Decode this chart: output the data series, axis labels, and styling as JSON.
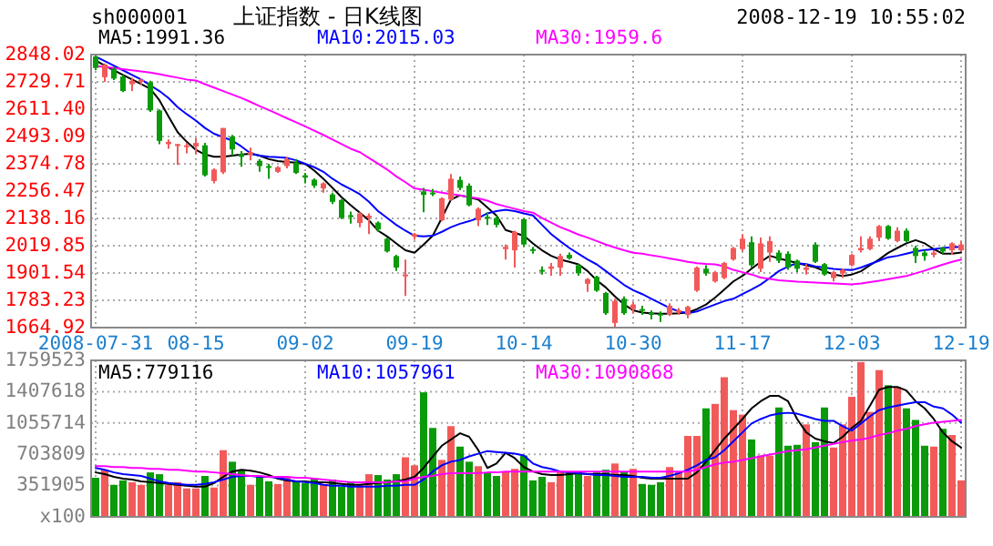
{
  "chart_data": [
    {
      "type": "candlestick",
      "title": "上证指数 - 日K线图",
      "subtitle": "sh000001",
      "annotations": [
        "2008-12-19 10:55:02"
      ],
      "categories": [
        "2008-07-31",
        null,
        null,
        null,
        null,
        null,
        null,
        null,
        null,
        null,
        null,
        "08-15",
        null,
        null,
        null,
        null,
        null,
        null,
        null,
        null,
        null,
        null,
        null,
        "09-02",
        null,
        null,
        null,
        null,
        null,
        null,
        null,
        null,
        null,
        null,
        null,
        "09-19",
        null,
        null,
        null,
        null,
        null,
        null,
        null,
        null,
        null,
        null,
        null,
        "10-14",
        null,
        null,
        null,
        null,
        null,
        null,
        null,
        null,
        null,
        null,
        null,
        "10-30",
        null,
        null,
        null,
        null,
        null,
        null,
        null,
        null,
        null,
        null,
        null,
        "11-17",
        null,
        null,
        null,
        null,
        null,
        null,
        null,
        null,
        null,
        null,
        null,
        "12-03",
        null,
        null,
        null,
        null,
        null,
        null,
        null,
        null,
        null,
        null,
        null,
        "12-19"
      ],
      "ohlc": [
        [
          2840,
          2848,
          2780,
          2790
        ],
        [
          2750,
          2810,
          2730,
          2805
        ],
        [
          2786,
          2795,
          2738,
          2744
        ],
        [
          2753,
          2760,
          2685,
          2690
        ],
        [
          2720,
          2748,
          2690,
          2735
        ],
        [
          2730,
          2745,
          2715,
          2738
        ],
        [
          2728,
          2735,
          2600,
          2606
        ],
        [
          2606,
          2610,
          2460,
          2474
        ],
        [
          2460,
          2480,
          2440,
          2470
        ],
        [
          2455,
          2462,
          2370,
          2460
        ],
        [
          2450,
          2465,
          2420,
          2455
        ],
        [
          2450,
          2485,
          2415,
          2465
        ],
        [
          2455,
          2465,
          2320,
          2325
        ],
        [
          2300,
          2355,
          2290,
          2350
        ],
        [
          2338,
          2530,
          2330,
          2530
        ],
        [
          2493,
          2500,
          2410,
          2437
        ],
        [
          2418,
          2430,
          2362,
          2405
        ],
        [
          2415,
          2445,
          2390,
          2425
        ],
        [
          2388,
          2395,
          2340,
          2365
        ],
        [
          2365,
          2375,
          2310,
          2358
        ],
        [
          2340,
          2365,
          2335,
          2360
        ],
        [
          2365,
          2405,
          2355,
          2395
        ],
        [
          2380,
          2395,
          2330,
          2335
        ],
        [
          2325,
          2335,
          2290,
          2315
        ],
        [
          2306,
          2312,
          2270,
          2280
        ],
        [
          2268,
          2295,
          2250,
          2290
        ],
        [
          2242,
          2250,
          2200,
          2210
        ],
        [
          2218,
          2222,
          2135,
          2140
        ],
        [
          2152,
          2168,
          2115,
          2146
        ],
        [
          2118,
          2165,
          2100,
          2160
        ],
        [
          2145,
          2160,
          2070,
          2150
        ],
        [
          2120,
          2125,
          2080,
          2090
        ],
        [
          2050,
          2055,
          1990,
          1995
        ],
        [
          1975,
          1980,
          1910,
          1925
        ],
        [
          1890,
          1960,
          1802,
          1895
        ],
        [
          2060,
          2075,
          2045,
          2070
        ],
        [
          2255,
          2270,
          2165,
          2240
        ],
        [
          2250,
          2265,
          2235,
          2245
        ],
        [
          2130,
          2230,
          2125,
          2225
        ],
        [
          2220,
          2330,
          2215,
          2310
        ],
        [
          2305,
          2320,
          2260,
          2270
        ],
        [
          2280,
          2290,
          2190,
          2195
        ],
        [
          2130,
          2185,
          2105,
          2180
        ],
        [
          2145,
          2165,
          2110,
          2140
        ],
        [
          2140,
          2150,
          2100,
          2110
        ],
        [
          2005,
          2025,
          1960,
          2015
        ],
        [
          2000,
          2085,
          1925,
          2080
        ],
        [
          2135,
          2140,
          2015,
          2025
        ],
        [
          2005,
          2015,
          1985,
          2000
        ],
        [
          1915,
          1930,
          1895,
          1908
        ],
        [
          1920,
          1945,
          1890,
          1930
        ],
        [
          1925,
          1985,
          1890,
          1975
        ],
        [
          1980,
          1990,
          1960,
          1965
        ],
        [
          1935,
          1940,
          1890,
          1900
        ],
        [
          1855,
          1880,
          1820,
          1875
        ],
        [
          1885,
          1890,
          1820,
          1825
        ],
        [
          1815,
          1820,
          1720,
          1727
        ],
        [
          1685,
          1790,
          1664.92,
          1780
        ],
        [
          1790,
          1800,
          1720,
          1727
        ],
        [
          1745,
          1775,
          1725,
          1765
        ],
        [
          1745,
          1760,
          1720,
          1738
        ],
        [
          1730,
          1740,
          1700,
          1720
        ],
        [
          1725,
          1735,
          1690,
          1718
        ],
        [
          1720,
          1770,
          1715,
          1760
        ],
        [
          1730,
          1750,
          1720,
          1740
        ],
        [
          1720,
          1760,
          1705,
          1755
        ],
        [
          1825,
          1930,
          1820,
          1925
        ],
        [
          1920,
          1935,
          1890,
          1900
        ],
        [
          1865,
          1910,
          1860,
          1905
        ],
        [
          1880,
          1950,
          1875,
          1945
        ],
        [
          1960,
          2015,
          1955,
          2010
        ],
        [
          2005,
          2070,
          1995,
          2050
        ],
        [
          2035,
          2060,
          1925,
          1935
        ],
        [
          1920,
          2055,
          1905,
          2030
        ],
        [
          1990,
          2060,
          1950,
          2040
        ],
        [
          1990,
          2000,
          1945,
          1955
        ],
        [
          1985,
          1995,
          1915,
          1925
        ],
        [
          1955,
          1960,
          1905,
          1920
        ],
        [
          1915,
          1940,
          1895,
          1925
        ],
        [
          2025,
          2035,
          1945,
          1950
        ],
        [
          1940,
          1945,
          1890,
          1895
        ],
        [
          1880,
          1910,
          1865,
          1905
        ],
        [
          1900,
          1920,
          1880,
          1915
        ],
        [
          1935,
          1985,
          1930,
          1980
        ],
        [
          2000,
          2060,
          1990,
          2010
        ],
        [
          2005,
          2060,
          2000,
          2050
        ],
        [
          2055,
          2110,
          2040,
          2105
        ],
        [
          2105,
          2110,
          2045,
          2050
        ],
        [
          2040,
          2100,
          2035,
          2085
        ],
        [
          2085,
          2095,
          2035,
          2040
        ],
        [
          2010,
          2020,
          1945,
          1975
        ],
        [
          1990,
          2000,
          1955,
          1975
        ],
        [
          1980,
          2000,
          1970,
          1990
        ],
        [
          2010,
          2015,
          1985,
          1995
        ],
        [
          2000,
          2035,
          1980,
          2030
        ],
        [
          2000,
          2040,
          1995,
          2025
        ]
      ],
      "colors": [
        "#0a9a0a",
        "#f25a5a",
        "#0a9a0a",
        "#0a9a0a",
        "#f25a5a",
        "#f25a5a",
        "#0a9a0a",
        "#0a9a0a",
        "#f25a5a",
        "#f25a5a",
        "#f25a5a",
        "#f25a5a",
        "#0a9a0a",
        "#f25a5a",
        "#f25a5a",
        "#0a9a0a",
        "#0a9a0a",
        "#f25a5a",
        "#0a9a0a",
        "#0a9a0a",
        "#f25a5a",
        "#f25a5a",
        "#0a9a0a",
        "#0a9a0a",
        "#0a9a0a",
        "#f25a5a",
        "#0a9a0a",
        "#0a9a0a",
        "#0a9a0a",
        "#f25a5a",
        "#f25a5a",
        "#0a9a0a",
        "#0a9a0a",
        "#0a9a0a",
        "#f25a5a",
        "#f25a5a",
        "#0a9a0a",
        "#0a9a0a",
        "#f25a5a",
        "#f25a5a",
        "#0a9a0a",
        "#0a9a0a",
        "#f25a5a",
        "#0a9a0a",
        "#0a9a0a",
        "#f25a5a",
        "#f25a5a",
        "#0a9a0a",
        "#0a9a0a",
        "#0a9a0a",
        "#f25a5a",
        "#f25a5a",
        "#0a9a0a",
        "#0a9a0a",
        "#f25a5a",
        "#0a9a0a",
        "#0a9a0a",
        "#f25a5a",
        "#0a9a0a",
        "#f25a5a",
        "#0a9a0a",
        "#0a9a0a",
        "#0a9a0a",
        "#f25a5a",
        "#f25a5a",
        "#f25a5a",
        "#f25a5a",
        "#0a9a0a",
        "#f25a5a",
        "#f25a5a",
        "#f25a5a",
        "#f25a5a",
        "#0a9a0a",
        "#f25a5a",
        "#f25a5a",
        "#0a9a0a",
        "#0a9a0a",
        "#0a9a0a",
        "#f25a5a",
        "#0a9a0a",
        "#0a9a0a",
        "#f25a5a",
        "#f25a5a",
        "#f25a5a",
        "#f25a5a",
        "#f25a5a",
        "#f25a5a",
        "#0a9a0a",
        "#f25a5a",
        "#0a9a0a",
        "#0a9a0a",
        "#0a9a0a",
        "#f25a5a",
        "#0a9a0a",
        "#f25a5a",
        "#f25a5a"
      ],
      "series": [
        {
          "type": "line",
          "name": "MA5:1991.36",
          "color": "#000000",
          "values": [
            2823,
            2800,
            2780,
            2760,
            2740,
            2720,
            2700,
            2650,
            2580,
            2512,
            2470,
            2435,
            2415,
            2405,
            2405,
            2410,
            2415,
            2418,
            2410,
            2395,
            2387,
            2383,
            2380,
            2375,
            2345,
            2310,
            2270,
            2230,
            2195,
            2163,
            2130,
            2085,
            2060,
            2030,
            2000,
            1989,
            2025,
            2063,
            2140,
            2220,
            2238,
            2230,
            2220,
            2185,
            2150,
            2088,
            2075,
            2063,
            2030,
            2000,
            1976,
            1960,
            1950,
            1939,
            1910,
            1870,
            1839,
            1800,
            1765,
            1740,
            1730,
            1727,
            1725,
            1725,
            1727,
            1730,
            1745,
            1765,
            1795,
            1830,
            1865,
            1889,
            1920,
            1950,
            1976,
            1965,
            1955,
            1945,
            1935,
            1926,
            1910,
            1895,
            1889,
            1895,
            1909,
            1935,
            1960,
            1989,
            2010,
            2030,
            2044,
            2030,
            2005,
            1985,
            1985,
            1990
          ]
        },
        {
          "type": "line",
          "name": "MA10:2015.03",
          "color": "#0000ff",
          "values": [
            2840,
            2820,
            2800,
            2780,
            2760,
            2740,
            2715,
            2690,
            2660,
            2620,
            2590,
            2562,
            2530,
            2505,
            2490,
            2475,
            2450,
            2420,
            2410,
            2405,
            2403,
            2400,
            2390,
            2375,
            2360,
            2340,
            2310,
            2285,
            2265,
            2243,
            2210,
            2170,
            2140,
            2110,
            2085,
            2063,
            2060,
            2063,
            2080,
            2100,
            2115,
            2126,
            2140,
            2160,
            2170,
            2176,
            2170,
            2160,
            2151,
            2110,
            2070,
            2039,
            2010,
            1985,
            1960,
            1939,
            1910,
            1880,
            1850,
            1827,
            1810,
            1790,
            1770,
            1750,
            1735,
            1727,
            1735,
            1750,
            1765,
            1780,
            1790,
            1810,
            1830,
            1852,
            1880,
            1910,
            1930,
            1944,
            1940,
            1930,
            1925,
            1919,
            1916,
            1914,
            1925,
            1940,
            1955,
            1970,
            1976,
            1985,
            1995,
            2001,
            2005,
            2010,
            2013,
            2015
          ]
        },
        {
          "type": "line",
          "name": "MA30:1959.6",
          "color": "#ff00ff",
          "values": [
            2798,
            2795,
            2790,
            2785,
            2780,
            2775,
            2770,
            2763,
            2755,
            2748,
            2740,
            2736,
            2720,
            2705,
            2690,
            2675,
            2660,
            2643,
            2625,
            2608,
            2590,
            2572,
            2555,
            2537,
            2518,
            2500,
            2480,
            2460,
            2440,
            2425,
            2400,
            2375,
            2350,
            2320,
            2295,
            2268,
            2262,
            2256,
            2250,
            2244,
            2238,
            2231,
            2225,
            2215,
            2200,
            2190,
            2180,
            2170,
            2163,
            2140,
            2120,
            2100,
            2085,
            2068,
            2055,
            2040,
            2025,
            2012,
            2000,
            1989,
            1985,
            1978,
            1972,
            1965,
            1958,
            1950,
            1944,
            1941,
            1939,
            1930,
            1915,
            1905,
            1895,
            1882,
            1876,
            1870,
            1867,
            1864,
            1862,
            1860,
            1858,
            1856,
            1854,
            1852,
            1856,
            1862,
            1868,
            1875,
            1882,
            1889,
            1900,
            1912,
            1925,
            1938,
            1950,
            1960
          ]
        }
      ],
      "ylim": [
        1664.92,
        2848.02
      ],
      "yticks": [
        1664.92,
        1783.23,
        1901.54,
        2019.85,
        2138.16,
        2256.47,
        2374.78,
        2493.09,
        {
          "value": 2611.4,
          "label": "2611.40"
        },
        2729.71,
        2848.02
      ],
      "grid": true,
      "legend": "top left"
    },
    {
      "type": "bar",
      "categories": [
        null,
        null,
        null,
        null,
        null,
        null,
        null,
        null,
        null,
        null,
        null,
        null,
        null,
        null,
        null,
        null,
        null,
        null,
        null,
        null,
        null,
        null,
        null,
        null,
        null,
        null,
        null,
        null,
        null,
        null,
        null,
        null,
        null,
        null,
        null,
        null,
        null,
        null,
        null,
        null,
        null,
        null,
        null,
        null,
        null,
        null,
        null,
        null,
        null,
        null,
        null,
        null,
        null,
        null,
        null,
        null,
        null,
        null,
        null,
        null,
        null,
        null,
        null,
        null,
        null,
        null,
        null,
        null,
        null,
        null,
        null,
        null,
        null,
        null,
        null,
        null,
        null,
        null,
        null,
        null,
        null,
        null,
        null,
        null,
        null,
        null,
        null,
        null,
        null,
        null,
        null,
        null,
        null,
        null,
        null,
        null
      ],
      "series": [
        {
          "type": "bar",
          "colors": [
            "#0a9a0a",
            "#f25a5a",
            "#0a9a0a",
            "#0a9a0a",
            "#f25a5a",
            "#f25a5a",
            "#0a9a0a",
            "#0a9a0a",
            "#f25a5a",
            "#f25a5a",
            "#f25a5a",
            "#f25a5a",
            "#0a9a0a",
            "#f25a5a",
            "#f25a5a",
            "#0a9a0a",
            "#0a9a0a",
            "#f25a5a",
            "#0a9a0a",
            "#0a9a0a",
            "#f25a5a",
            "#f25a5a",
            "#0a9a0a",
            "#0a9a0a",
            "#0a9a0a",
            "#f25a5a",
            "#0a9a0a",
            "#0a9a0a",
            "#0a9a0a",
            "#f25a5a",
            "#f25a5a",
            "#0a9a0a",
            "#0a9a0a",
            "#0a9a0a",
            "#f25a5a",
            "#f25a5a",
            "#0a9a0a",
            "#0a9a0a",
            "#f25a5a",
            "#f25a5a",
            "#0a9a0a",
            "#0a9a0a",
            "#f25a5a",
            "#0a9a0a",
            "#0a9a0a",
            "#f25a5a",
            "#f25a5a",
            "#0a9a0a",
            "#0a9a0a",
            "#0a9a0a",
            "#f25a5a",
            "#f25a5a",
            "#0a9a0a",
            "#0a9a0a",
            "#f25a5a",
            "#0a9a0a",
            "#0a9a0a",
            "#f25a5a",
            "#0a9a0a",
            "#f25a5a",
            "#0a9a0a",
            "#0a9a0a",
            "#0a9a0a",
            "#f25a5a",
            "#f25a5a",
            "#f25a5a",
            "#f25a5a",
            "#0a9a0a",
            "#f25a5a",
            "#f25a5a",
            "#f25a5a",
            "#f25a5a",
            "#0a9a0a",
            "#f25a5a",
            "#f25a5a",
            "#0a9a0a",
            "#0a9a0a",
            "#0a9a0a",
            "#f25a5a",
            "#0a9a0a",
            "#0a9a0a",
            "#f25a5a",
            "#f25a5a",
            "#f25a5a",
            "#f25a5a",
            "#f25a5a",
            "#f25a5a",
            "#0a9a0a",
            "#f25a5a",
            "#0a9a0a",
            "#0a9a0a",
            "#0a9a0a",
            "#f25a5a",
            "#0a9a0a",
            "#f25a5a",
            "#f25a5a"
          ],
          "values": [
            440000,
            530000,
            360000,
            410000,
            390000,
            360000,
            500000,
            480000,
            360000,
            390000,
            320000,
            320000,
            460000,
            330000,
            750000,
            620000,
            530000,
            360000,
            460000,
            400000,
            370000,
            440000,
            400000,
            380000,
            430000,
            370000,
            420000,
            340000,
            400000,
            370000,
            480000,
            470000,
            420000,
            480000,
            670000,
            580000,
            1400000,
            1000000,
            640000,
            1020000,
            790000,
            620000,
            570000,
            500000,
            460000,
            510000,
            540000,
            690000,
            410000,
            450000,
            390000,
            510000,
            510000,
            500000,
            460000,
            500000,
            530000,
            600000,
            510000,
            540000,
            370000,
            360000,
            390000,
            560000,
            510000,
            910000,
            910000,
            1220000,
            1270000,
            1570000,
            1200000,
            1150000,
            870000,
            690000,
            690000,
            1230000,
            800000,
            810000,
            1040000,
            840000,
            1230000,
            780000,
            1040000,
            1350000,
            1740000,
            1180000,
            1650000,
            1480000,
            1460000,
            1220000,
            1090000,
            800000,
            790000,
            990000,
            920000,
            410000
          ]
        },
        {
          "type": "line",
          "name": "MA5:779116",
          "color": "#000000",
          "values": [
            500000,
            480000,
            450000,
            430000,
            420000,
            400000,
            390000,
            380000,
            370000,
            360000,
            350000,
            340000,
            340000,
            380000,
            450000,
            510000,
            530000,
            520000,
            500000,
            470000,
            430000,
            410000,
            400000,
            400000,
            390000,
            390000,
            380000,
            370000,
            360000,
            360000,
            370000,
            380000,
            390000,
            400000,
            420000,
            450000,
            550000,
            680000,
            800000,
            870000,
            940000,
            900000,
            750000,
            550000,
            600000,
            720000,
            660000,
            560000,
            510000,
            480000,
            470000,
            470000,
            480000,
            490000,
            480000,
            480000,
            480000,
            470000,
            470000,
            460000,
            440000,
            430000,
            430000,
            430000,
            430000,
            430000,
            500000,
            620000,
            750000,
            880000,
            990000,
            1100000,
            1220000,
            1300000,
            1360000,
            1360000,
            1300000,
            1100000,
            950000,
            880000,
            850000,
            830000,
            900000,
            1000000,
            1080000,
            1250000,
            1430000,
            1460000,
            1460000,
            1420000,
            1300000,
            1220000,
            1100000,
            950000,
            850000,
            780000
          ]
        },
        {
          "type": "line",
          "name": "MA10:1057961",
          "color": "#0000ff",
          "values": [
            550000,
            530000,
            500000,
            480000,
            470000,
            460000,
            430000,
            400000,
            380000,
            370000,
            360000,
            360000,
            370000,
            390000,
            420000,
            450000,
            460000,
            460000,
            450000,
            450000,
            440000,
            420000,
            400000,
            390000,
            380000,
            360000,
            350000,
            350000,
            340000,
            340000,
            340000,
            340000,
            350000,
            350000,
            360000,
            360000,
            420000,
            510000,
            580000,
            620000,
            640000,
            680000,
            710000,
            740000,
            730000,
            720000,
            710000,
            690000,
            600000,
            560000,
            540000,
            510000,
            500000,
            490000,
            480000,
            470000,
            470000,
            460000,
            450000,
            450000,
            450000,
            440000,
            440000,
            460000,
            490000,
            530000,
            580000,
            640000,
            670000,
            750000,
            850000,
            950000,
            1050000,
            1100000,
            1140000,
            1160000,
            1170000,
            1160000,
            1130000,
            1100000,
            1080000,
            1080000,
            1020000,
            970000,
            1050000,
            1130000,
            1200000,
            1230000,
            1250000,
            1270000,
            1290000,
            1290000,
            1240000,
            1220000,
            1150000,
            1060000
          ]
        },
        {
          "type": "line",
          "name": "MA30:1090868",
          "color": "#ff00ff",
          "values": [
            570000,
            570000,
            560000,
            560000,
            550000,
            550000,
            540000,
            540000,
            530000,
            530000,
            520000,
            510000,
            510000,
            500000,
            490000,
            480000,
            470000,
            460000,
            460000,
            450000,
            450000,
            450000,
            440000,
            440000,
            430000,
            420000,
            410000,
            400000,
            390000,
            390000,
            390000,
            390000,
            390000,
            400000,
            400000,
            430000,
            450000,
            460000,
            480000,
            490000,
            490000,
            490000,
            490000,
            500000,
            500000,
            510000,
            510000,
            510000,
            510000,
            510000,
            510000,
            510000,
            510000,
            510000,
            510000,
            510000,
            510000,
            510000,
            510000,
            510000,
            510000,
            510000,
            510000,
            510000,
            510000,
            510000,
            530000,
            560000,
            590000,
            610000,
            620000,
            640000,
            660000,
            680000,
            700000,
            720000,
            740000,
            750000,
            760000,
            780000,
            800000,
            820000,
            840000,
            860000,
            870000,
            890000,
            920000,
            940000,
            970000,
            990000,
            1020000,
            1040000,
            1060000,
            1070000,
            1080000,
            1090000
          ]
        }
      ],
      "ylim": [
        0,
        1759523
      ],
      "yticks": [
        {
          "value": 0,
          "label": "x100"
        },
        351905,
        703809,
        1055714,
        1407618,
        1759523
      ],
      "grid": true,
      "legend": "top left",
      "tick_labels": "y"
    }
  ]
}
